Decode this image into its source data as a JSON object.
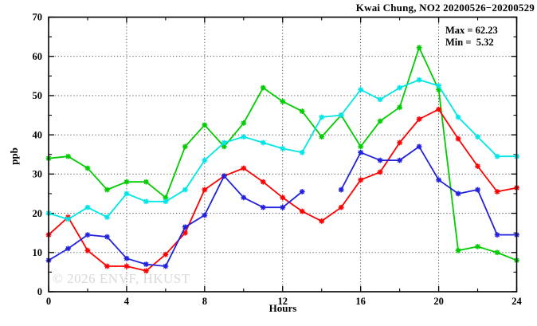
{
  "title": "Kwai Chung, NO2 20200526−20200529",
  "annotations": {
    "max_label": "Max = 62.23",
    "min_label": "Min =  5.32"
  },
  "watermark": "© 2026 ENVF, HKUST",
  "chart_data": {
    "type": "line",
    "title": "Kwai Chung, NO2 20200526−20200529",
    "xlabel": "Hours",
    "ylabel": "ppb",
    "xlim": [
      0,
      24
    ],
    "ylim": [
      0,
      70
    ],
    "x_tick_labels": [
      "0",
      "4",
      "8",
      "12",
      "16",
      "20",
      "24"
    ],
    "x_minor_ticks": [
      2,
      6,
      10,
      14,
      18,
      22
    ],
    "y_tick_labels": [
      "0",
      "10",
      "20",
      "30",
      "40",
      "50",
      "60",
      "70"
    ],
    "y_minor_ticks": [
      5,
      15,
      25,
      35,
      45,
      55,
      65
    ],
    "grid": "dotted horizontal at 10..60, dotted vertical at 4,8,12,16,20",
    "legend_position": "none",
    "max": 62.23,
    "min": 5.32,
    "x": [
      0,
      1,
      2,
      3,
      4,
      5,
      6,
      7,
      8,
      9,
      10,
      11,
      12,
      13,
      14,
      15,
      16,
      17,
      18,
      19,
      20,
      21,
      22,
      23,
      24
    ],
    "series": [
      {
        "name": "green",
        "color": "#00cc00",
        "values": [
          34,
          34.5,
          31.5,
          26,
          28,
          28,
          24,
          37,
          42.5,
          37,
          43,
          52,
          48.5,
          46,
          39.5,
          45,
          37,
          43.5,
          47,
          62.23,
          51.5,
          10.5,
          11.5,
          10,
          8
        ]
      },
      {
        "name": "red",
        "color": "#ff0000",
        "values": [
          14.5,
          19,
          10.5,
          6.5,
          6.5,
          5.32,
          9.5,
          15,
          26,
          29.5,
          31.5,
          28,
          24,
          20.5,
          18,
          21.5,
          28.5,
          30.5,
          38,
          44,
          46.5,
          39,
          32,
          25.5,
          26.5
        ]
      },
      {
        "name": "blue",
        "color": "#2222dd",
        "values": [
          8,
          11,
          14.5,
          14,
          8.5,
          7,
          6.5,
          16.5,
          19.5,
          29.5,
          24,
          21.5,
          21.5,
          25.5,
          null,
          26,
          35.5,
          33.5,
          33.5,
          37,
          28.5,
          25,
          26,
          14.5,
          14.5
        ]
      },
      {
        "name": "cyan",
        "color": "#00e6e6",
        "values": [
          20,
          18.5,
          21.5,
          19,
          25,
          23,
          23,
          26,
          33.5,
          38,
          39.5,
          38,
          36.5,
          35.5,
          44.5,
          45,
          51.5,
          49,
          52,
          54,
          52.5,
          44.5,
          39.5,
          34.5,
          34.5
        ]
      }
    ]
  }
}
